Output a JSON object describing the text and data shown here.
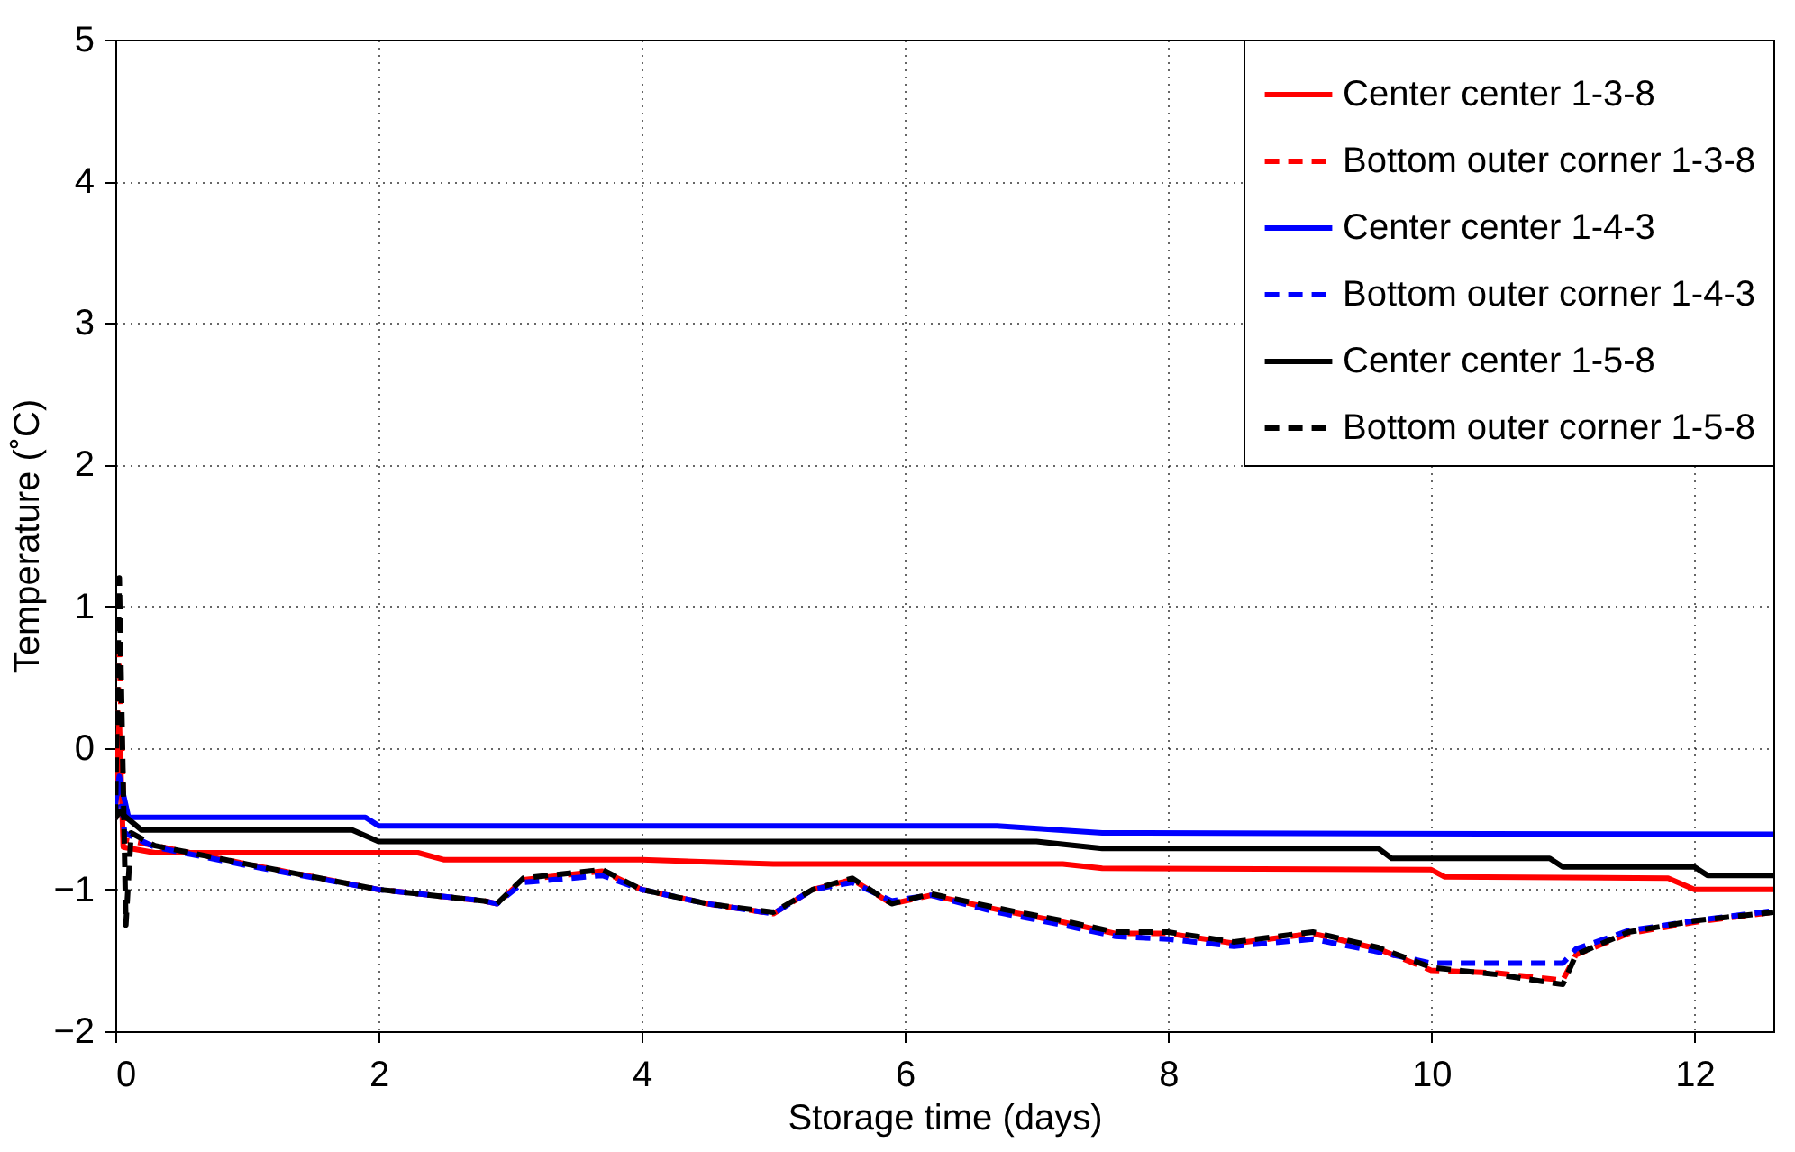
{
  "chart_data": {
    "type": "line",
    "xlabel": "Storage time (days)",
    "ylabel": "Temperature (˚C)",
    "xlim": [
      0,
      12.6
    ],
    "ylim": [
      -2,
      5
    ],
    "xticks": [
      0,
      2,
      4,
      6,
      8,
      10,
      12
    ],
    "yticks": [
      -2,
      -1,
      0,
      1,
      2,
      3,
      4,
      5
    ],
    "grid": true,
    "legend": "top right",
    "series": [
      {
        "name": "Center center 1-3-8",
        "color": "#ff0000",
        "line_style": "solid",
        "x": [
          0,
          0.03,
          0.06,
          0.3,
          2.3,
          2.5,
          4,
          5,
          7.2,
          7.5,
          10,
          10.1,
          11.8,
          12,
          12.6
        ],
        "values": [
          -0.5,
          0.2,
          -0.7,
          -0.74,
          -0.74,
          -0.79,
          -0.79,
          -0.82,
          -0.82,
          -0.85,
          -0.86,
          -0.91,
          -0.92,
          -1.0,
          -1.0
        ]
      },
      {
        "name": "Bottom outer corner 1-3-8",
        "color": "#ff0000",
        "line_style": "dashed",
        "x": [
          0,
          0.03,
          0.07,
          0.3,
          1,
          2,
          2.8,
          2.9,
          3.1,
          3.7,
          4,
          4.5,
          5,
          5.3,
          5.6,
          5.9,
          6.2,
          6.7,
          7.2,
          7.6,
          8,
          8.5,
          9.1,
          9.6,
          10,
          10.5,
          11,
          11.1,
          11.5,
          12,
          12.6
        ],
        "values": [
          -0.5,
          0.7,
          -0.65,
          -0.69,
          -0.82,
          -1.0,
          -1.08,
          -1.1,
          -0.93,
          -0.87,
          -1.0,
          -1.1,
          -1.17,
          -1.0,
          -0.93,
          -1.1,
          -1.04,
          -1.14,
          -1.23,
          -1.31,
          -1.31,
          -1.38,
          -1.31,
          -1.42,
          -1.57,
          -1.59,
          -1.64,
          -1.46,
          -1.31,
          -1.23,
          -1.16
        ]
      },
      {
        "name": "Center center 1-4-3",
        "color": "#0000ff",
        "line_style": "solid",
        "x": [
          0,
          0.03,
          0.1,
          1.9,
          2.0,
          6.7,
          7.5,
          12.6
        ],
        "values": [
          -0.4,
          -0.2,
          -0.49,
          -0.49,
          -0.55,
          -0.55,
          -0.6,
          -0.61
        ]
      },
      {
        "name": "Bottom outer corner 1-4-3",
        "color": "#0000ff",
        "line_style": "dashed",
        "x": [
          0,
          0.03,
          0.07,
          0.3,
          1,
          2,
          2.8,
          2.9,
          3.1,
          3.7,
          4,
          4.5,
          5,
          5.3,
          5.6,
          5.9,
          6.2,
          6.7,
          7.2,
          7.6,
          8,
          8.5,
          9.1,
          9.6,
          10,
          11,
          11.1,
          11.5,
          12,
          12.6
        ],
        "values": [
          -0.5,
          -0.2,
          -0.6,
          -0.7,
          -0.83,
          -1.0,
          -1.08,
          -1.1,
          -0.95,
          -0.9,
          -1.0,
          -1.1,
          -1.17,
          -1.0,
          -0.95,
          -1.08,
          -1.04,
          -1.16,
          -1.25,
          -1.33,
          -1.35,
          -1.4,
          -1.35,
          -1.44,
          -1.52,
          -1.52,
          -1.42,
          -1.29,
          -1.22,
          -1.15
        ]
      },
      {
        "name": "Center center 1-5-8",
        "color": "#000000",
        "line_style": "solid",
        "x": [
          0,
          0.03,
          0.2,
          1.8,
          2.0,
          7.0,
          7.5,
          9.6,
          9.7,
          10.9,
          11.0,
          12.0,
          12.1,
          12.6
        ],
        "values": [
          -0.5,
          -0.45,
          -0.58,
          -0.58,
          -0.66,
          -0.66,
          -0.71,
          -0.71,
          -0.78,
          -0.78,
          -0.84,
          -0.84,
          -0.9,
          -0.9
        ]
      },
      {
        "name": "Bottom outer corner 1-5-8",
        "color": "#000000",
        "line_style": "dashed",
        "x": [
          0,
          0.03,
          0.08,
          0.12,
          0.3,
          1,
          2,
          2.8,
          2.9,
          3.1,
          3.7,
          4,
          4.5,
          5,
          5.3,
          5.6,
          5.9,
          6.2,
          6.7,
          7.2,
          7.6,
          8,
          8.5,
          9.1,
          9.6,
          10,
          10.5,
          11,
          11.1,
          11.5,
          12,
          12.6
        ],
        "values": [
          -0.5,
          1.2,
          -1.25,
          -0.6,
          -0.69,
          -0.82,
          -1.0,
          -1.08,
          -1.1,
          -0.92,
          -0.86,
          -1.0,
          -1.1,
          -1.16,
          -1.0,
          -0.92,
          -1.1,
          -1.03,
          -1.13,
          -1.22,
          -1.3,
          -1.3,
          -1.37,
          -1.3,
          -1.41,
          -1.55,
          -1.6,
          -1.67,
          -1.46,
          -1.3,
          -1.22,
          -1.16
        ]
      }
    ]
  }
}
